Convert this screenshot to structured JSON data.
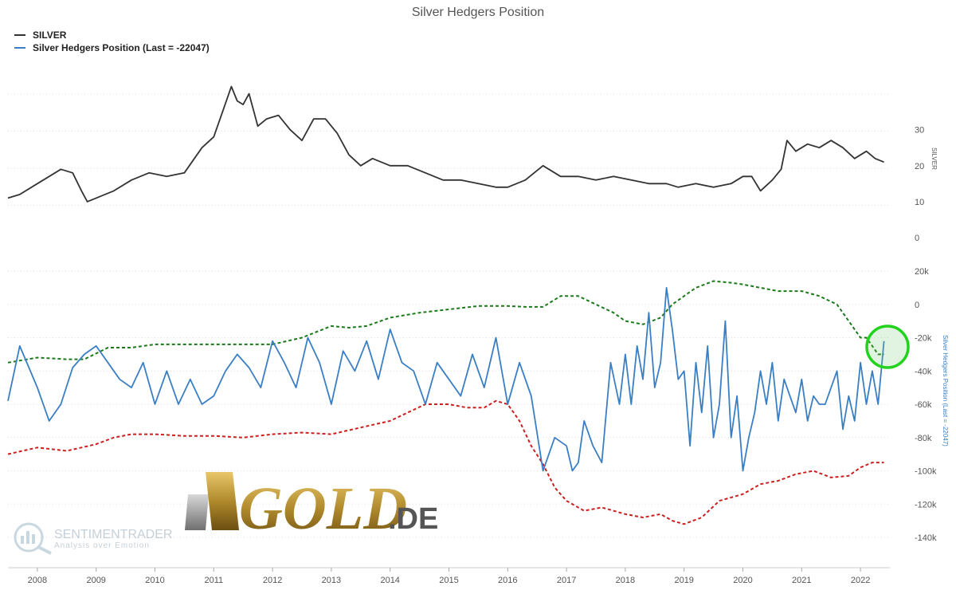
{
  "title": "Silver Hedgers Position",
  "legend": [
    {
      "label": "SILVER",
      "color": "#333333"
    },
    {
      "label": "Silver Hedgers Position (Last = -22047)",
      "color": "#3a7fc4"
    }
  ],
  "watermarks": {
    "gold_logo_text": "GOLD",
    "gold_logo_suffix": ".DE",
    "sentiment_name": "SENTIMENTRADER",
    "sentiment_tagline": "Analysis over Emotion"
  },
  "chart_data": [
    {
      "type": "line",
      "title": "Silver Hedgers Position",
      "panel": "top",
      "ylabel": "SILVER",
      "ylim": [
        0,
        45
      ],
      "yticks": [
        0,
        10,
        20,
        30
      ],
      "x_ticks": [
        "2008",
        "2009",
        "2010",
        "2011",
        "2012",
        "2013",
        "2014",
        "2015",
        "2016",
        "2017",
        "2018",
        "2019",
        "2020",
        "2021",
        "2022"
      ],
      "grid": true,
      "series": [
        {
          "name": "SILVER",
          "color": "#333333",
          "x": [
            2007.5,
            2007.7,
            2008.0,
            2008.2,
            2008.4,
            2008.6,
            2008.75,
            2008.85,
            2009.0,
            2009.3,
            2009.6,
            2009.9,
            2010.2,
            2010.5,
            2010.8,
            2011.0,
            2011.15,
            2011.3,
            2011.4,
            2011.5,
            2011.6,
            2011.75,
            2011.9,
            2012.1,
            2012.3,
            2012.5,
            2012.7,
            2012.9,
            2013.1,
            2013.3,
            2013.5,
            2013.7,
            2014.0,
            2014.3,
            2014.6,
            2014.9,
            2015.2,
            2015.5,
            2015.8,
            2016.0,
            2016.3,
            2016.6,
            2016.9,
            2017.2,
            2017.5,
            2017.8,
            2018.1,
            2018.4,
            2018.7,
            2018.9,
            2019.2,
            2019.5,
            2019.8,
            2020.0,
            2020.15,
            2020.3,
            2020.5,
            2020.65,
            2020.75,
            2020.9,
            2021.1,
            2021.3,
            2021.5,
            2021.7,
            2021.9,
            2022.1,
            2022.25,
            2022.4
          ],
          "values": [
            11,
            12,
            15,
            17,
            19,
            18,
            13,
            10,
            11,
            13,
            16,
            18,
            17,
            18,
            25,
            28,
            35,
            42,
            38,
            37,
            40,
            31,
            33,
            34,
            30,
            27,
            33,
            33,
            29,
            23,
            20,
            22,
            20,
            20,
            18,
            16,
            16,
            15,
            14,
            14,
            16,
            20,
            17,
            17,
            16,
            17,
            16,
            15,
            15,
            14,
            15,
            14,
            15,
            17,
            17,
            13,
            16,
            19,
            27,
            24,
            26,
            25,
            27,
            25,
            22,
            24,
            22,
            21
          ]
        }
      ]
    },
    {
      "type": "line",
      "panel": "bottom",
      "ylabel": "Silver Hedgers Position (Last = -22047)",
      "ylim": [
        -150000,
        25000
      ],
      "yticks": [
        20000,
        0,
        -20000,
        -40000,
        -60000,
        -80000,
        -100000,
        -120000,
        -140000
      ],
      "ytick_labels": [
        "20k",
        "0",
        "-20k",
        "-40k",
        "-60k",
        "-80k",
        "-100k",
        "-120k",
        "-140k"
      ],
      "last_value": -22047,
      "grid": true,
      "series": [
        {
          "name": "Silver Hedgers Position (Last = -22047)",
          "color": "#3a7fc4",
          "x": [
            2007.5,
            2007.7,
            2008.0,
            2008.2,
            2008.4,
            2008.6,
            2008.8,
            2009.0,
            2009.2,
            2009.4,
            2009.6,
            2009.8,
            2010.0,
            2010.2,
            2010.4,
            2010.6,
            2010.8,
            2011.0,
            2011.2,
            2011.4,
            2011.6,
            2011.8,
            2012.0,
            2012.2,
            2012.4,
            2012.6,
            2012.8,
            2013.0,
            2013.2,
            2013.4,
            2013.6,
            2013.8,
            2014.0,
            2014.2,
            2014.4,
            2014.6,
            2014.8,
            2015.0,
            2015.2,
            2015.4,
            2015.6,
            2015.8,
            2016.0,
            2016.2,
            2016.4,
            2016.6,
            2016.8,
            2017.0,
            2017.1,
            2017.2,
            2017.3,
            2017.45,
            2017.6,
            2017.75,
            2017.9,
            2018.0,
            2018.1,
            2018.2,
            2018.3,
            2018.4,
            2018.5,
            2018.6,
            2018.7,
            2018.8,
            2018.9,
            2019.0,
            2019.1,
            2019.2,
            2019.3,
            2019.4,
            2019.5,
            2019.6,
            2019.7,
            2019.8,
            2019.9,
            2020.0,
            2020.1,
            2020.2,
            2020.3,
            2020.4,
            2020.5,
            2020.6,
            2020.7,
            2020.8,
            2020.9,
            2021.0,
            2021.1,
            2021.2,
            2021.3,
            2021.4,
            2021.5,
            2021.6,
            2021.7,
            2021.8,
            2021.9,
            2022.0,
            2022.1,
            2022.2,
            2022.3,
            2022.4
          ],
          "values": [
            -58000,
            -25000,
            -50000,
            -70000,
            -60000,
            -38000,
            -30000,
            -25000,
            -35000,
            -45000,
            -50000,
            -35000,
            -60000,
            -40000,
            -60000,
            -45000,
            -60000,
            -55000,
            -40000,
            -30000,
            -38000,
            -50000,
            -22000,
            -35000,
            -50000,
            -20000,
            -35000,
            -60000,
            -28000,
            -40000,
            -22000,
            -45000,
            -15000,
            -35000,
            -40000,
            -60000,
            -35000,
            -45000,
            -55000,
            -30000,
            -50000,
            -20000,
            -60000,
            -35000,
            -55000,
            -100000,
            -80000,
            -85000,
            -100000,
            -95000,
            -70000,
            -85000,
            -95000,
            -35000,
            -60000,
            -30000,
            -60000,
            -25000,
            -45000,
            -5000,
            -50000,
            -35000,
            10000,
            -15000,
            -45000,
            -40000,
            -85000,
            -35000,
            -65000,
            -25000,
            -80000,
            -60000,
            -10000,
            -80000,
            -55000,
            -100000,
            -80000,
            -65000,
            -40000,
            -60000,
            -35000,
            -70000,
            -45000,
            -55000,
            -65000,
            -45000,
            -70000,
            -55000,
            -60000,
            -60000,
            -50000,
            -40000,
            -75000,
            -55000,
            -70000,
            -35000,
            -60000,
            -40000,
            -60000,
            -22047
          ]
        },
        {
          "name": "",
          "color": "#1a7a1a",
          "dashed": true,
          "x": [
            2007.5,
            2008.0,
            2008.5,
            2008.8,
            2009.2,
            2009.6,
            2010.0,
            2010.5,
            2011.0,
            2011.5,
            2012.0,
            2012.5,
            2013.0,
            2013.3,
            2013.6,
            2014.0,
            2014.5,
            2015.0,
            2015.5,
            2016.0,
            2016.3,
            2016.6,
            2016.9,
            2017.2,
            2017.5,
            2017.8,
            2018.0,
            2018.3,
            2018.6,
            2018.8,
            2019.0,
            2019.2,
            2019.5,
            2019.8,
            2020.0,
            2020.3,
            2020.6,
            2021.0,
            2021.3,
            2021.6,
            2021.8,
            2022.0,
            2022.1,
            2022.2,
            2022.3,
            2022.4
          ],
          "values": [
            -35000,
            -32000,
            -33000,
            -33000,
            -26000,
            -26000,
            -24000,
            -24000,
            -24000,
            -24000,
            -24000,
            -20000,
            -13000,
            -14000,
            -13000,
            -8000,
            -5000,
            -3000,
            -1000,
            -1000,
            -1500,
            -1500,
            5000,
            5000,
            0,
            -5000,
            -10000,
            -12000,
            -8000,
            0,
            5000,
            10000,
            14000,
            13000,
            12000,
            10000,
            8000,
            8000,
            5000,
            0,
            -10000,
            -20000,
            -20000,
            -25000,
            -30000,
            -30000
          ]
        },
        {
          "name": "",
          "color": "#cc1f1f",
          "dashed": true,
          "x": [
            2007.5,
            2008.0,
            2008.5,
            2009.0,
            2009.3,
            2009.6,
            2010.0,
            2010.5,
            2011.0,
            2011.5,
            2012.0,
            2012.5,
            2013.0,
            2013.5,
            2014.0,
            2014.3,
            2014.6,
            2015.0,
            2015.3,
            2015.6,
            2015.8,
            2016.0,
            2016.2,
            2016.4,
            2016.6,
            2016.8,
            2017.0,
            2017.3,
            2017.6,
            2018.0,
            2018.3,
            2018.6,
            2018.8,
            2019.0,
            2019.3,
            2019.6,
            2020.0,
            2020.3,
            2020.6,
            2020.9,
            2021.2,
            2021.5,
            2021.8,
            2022.0,
            2022.2,
            2022.4
          ],
          "values": [
            -90000,
            -86000,
            -88000,
            -84000,
            -80000,
            -78000,
            -78000,
            -79000,
            -79000,
            -80000,
            -78000,
            -77000,
            -78000,
            -74000,
            -70000,
            -65000,
            -60000,
            -60000,
            -62000,
            -62000,
            -58000,
            -60000,
            -70000,
            -85000,
            -96000,
            -110000,
            -118000,
            -124000,
            -122000,
            -126000,
            -128000,
            -126000,
            -130000,
            -132000,
            -128000,
            -118000,
            -114000,
            -108000,
            -106000,
            -102000,
            -100000,
            -104000,
            -103000,
            -98000,
            -95000,
            -95000
          ]
        }
      ]
    }
  ]
}
